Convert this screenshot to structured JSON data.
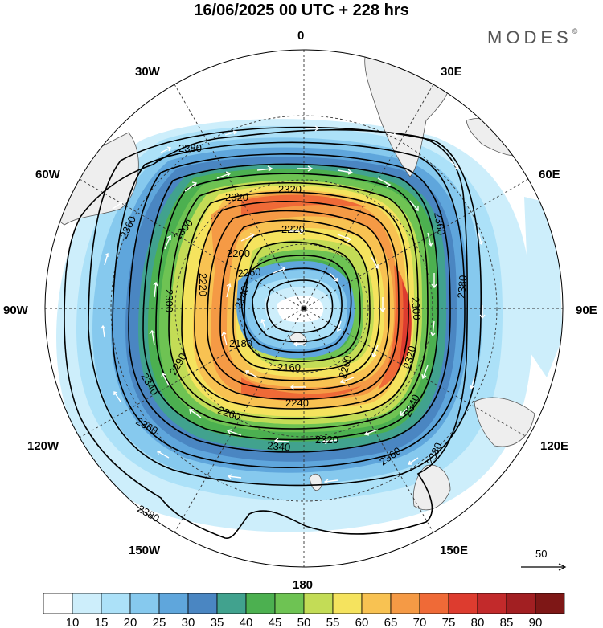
{
  "title": "16/06/2025  00 UTC  + 228 hrs",
  "brand": {
    "name": "MODES",
    "mark": "©"
  },
  "longitude_labels": {
    "n": "0",
    "w30": "30W",
    "e30": "30E",
    "w60": "60W",
    "e60": "60E",
    "w90": "90W",
    "e90": "90E",
    "w120": "120W",
    "e120": "120E",
    "w150": "150W",
    "e150": "150E",
    "s": "180"
  },
  "contour_labels": [
    "2380",
    "2360",
    "2320",
    "2320",
    "2300",
    "2220",
    "2200",
    "2260",
    "2360",
    "2300",
    "2220",
    "2140",
    "2380",
    "2300",
    "2180",
    "2160",
    "2200",
    "2320",
    "2290",
    "2340",
    "2240",
    "2340",
    "2260",
    "2360",
    "2320",
    "2340",
    "2360",
    "2380",
    "2380"
  ],
  "vector_reference": "50",
  "colorbar": {
    "values": [
      "10",
      "15",
      "20",
      "25",
      "30",
      "35",
      "40",
      "45",
      "50",
      "55",
      "60",
      "65",
      "70",
      "75",
      "80",
      "85",
      "90"
    ],
    "colors": [
      "#ffffff",
      "#cdeefb",
      "#ace1f8",
      "#86c9ee",
      "#5fa6dc",
      "#4a86c2",
      "#41a28e",
      "#4cb050",
      "#6ec353",
      "#c3dc56",
      "#f5e35e",
      "#f8c252",
      "#f59a45",
      "#ef6a37",
      "#dd3c2f",
      "#c22a2b",
      "#a21f22",
      "#7e1716"
    ]
  },
  "colors": {
    "land": "#eeeeee",
    "contour": "#000000",
    "graticule": "#333333",
    "arrow": "#ffffff"
  }
}
